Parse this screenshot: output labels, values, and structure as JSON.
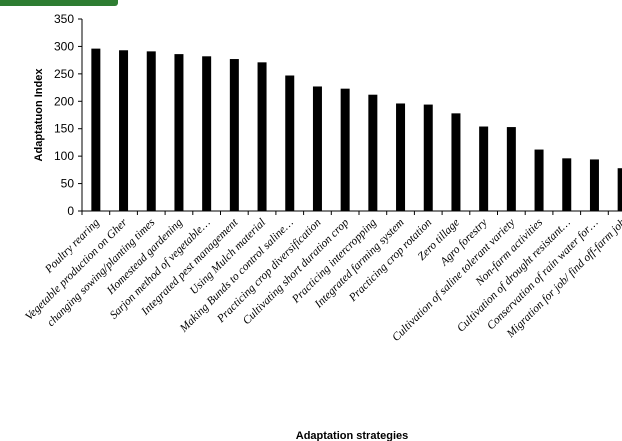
{
  "chart_data": {
    "type": "bar",
    "title": "",
    "xlabel": "Adaptation strategies",
    "ylabel": "Adaptatuon Index",
    "ylim": [
      0,
      350
    ],
    "yticks": [
      0,
      50,
      100,
      150,
      200,
      250,
      300,
      350
    ],
    "grid": false,
    "bar_color": "#000000",
    "categories": [
      "Poultry rearing",
      "Vegetable production on Gher",
      "changing sowing/planting times",
      "Homestead gardening",
      "Sarjon method of vegetable…",
      "Integrated pest management",
      "Using Mulch material",
      "Making Bunds to control saline…",
      "Practicing crop diversification",
      "Cultivating short duration crop",
      "Practicing intercropping",
      "Integrated farming system",
      "Practicing crop rotation",
      "Zero tillage",
      "Agro forestry",
      "Cultivation of saline tolerant variety",
      "Non-farm activities",
      "Cultivation of drought resistant…",
      "Conservation of rain water for…",
      "Migration for job/ find off-farm job"
    ],
    "values": [
      296,
      293,
      291,
      286,
      282,
      277,
      271,
      247,
      227,
      223,
      212,
      196,
      194,
      178,
      154,
      153,
      112,
      96,
      94,
      78
    ]
  },
  "decor": {
    "badge_color": "#2e7d32"
  }
}
